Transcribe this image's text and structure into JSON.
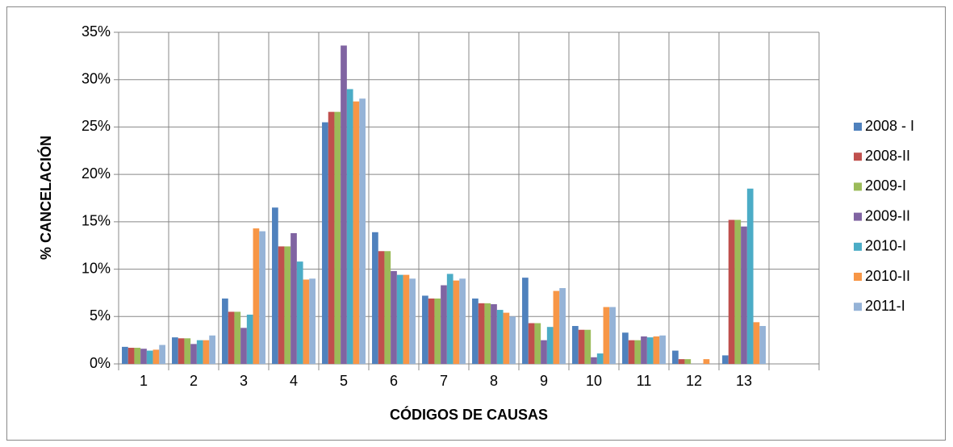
{
  "chart_data": {
    "type": "bar",
    "y_label": "% CANCELACIÓN",
    "x_label": "CÓDIGOS DE CAUSAS",
    "categories": [
      "1",
      "2",
      "3",
      "4",
      "5",
      "6",
      "7",
      "8",
      "9",
      "10",
      "11",
      "12",
      "13",
      null
    ],
    "series": [
      {
        "name": "2008 - I",
        "color": "#4f81bd",
        "values": [
          1.8,
          2.8,
          6.9,
          16.5,
          25.5,
          13.9,
          7.2,
          6.9,
          9.1,
          4.0,
          3.3,
          1.4,
          0.9,
          null
        ]
      },
      {
        "name": "2008-II",
        "color": "#c0504d",
        "values": [
          1.7,
          2.7,
          5.5,
          12.4,
          26.6,
          11.9,
          6.9,
          6.4,
          4.3,
          3.6,
          2.5,
          0.5,
          15.2,
          null
        ]
      },
      {
        "name": "2009-I",
        "color": "#9bbb59",
        "values": [
          1.7,
          2.7,
          5.5,
          12.4,
          26.6,
          11.9,
          6.9,
          6.4,
          4.3,
          3.6,
          2.5,
          0.5,
          15.2,
          null
        ]
      },
      {
        "name": "2009-II",
        "color": "#8064a2",
        "values": [
          1.6,
          2.1,
          3.8,
          13.8,
          33.6,
          9.8,
          8.3,
          6.3,
          2.5,
          0.7,
          2.9,
          0,
          14.5,
          null
        ]
      },
      {
        "name": "2010-I",
        "color": "#4bacc6",
        "values": [
          1.4,
          2.5,
          5.2,
          10.8,
          29.0,
          9.4,
          9.5,
          5.7,
          3.9,
          1.1,
          2.8,
          0,
          18.5,
          null
        ]
      },
      {
        "name": "2010-II",
        "color": "#f79646",
        "values": [
          1.5,
          2.5,
          14.3,
          8.9,
          27.7,
          9.4,
          8.8,
          5.4,
          7.7,
          6.0,
          2.9,
          0.5,
          4.4,
          null
        ]
      },
      {
        "name": "2011-I",
        "color": "#95b3d7",
        "values": [
          2.0,
          3.0,
          14.0,
          9.0,
          28.0,
          9.0,
          9.0,
          5.0,
          8.0,
          6.0,
          3.0,
          0,
          4.0,
          null
        ]
      }
    ],
    "ylim": [
      0,
      35
    ],
    "yticks": [
      {
        "value": 0,
        "label": "0%"
      },
      {
        "value": 5,
        "label": "5%"
      },
      {
        "value": 10,
        "label": "10%"
      },
      {
        "value": 15,
        "label": "15%"
      },
      {
        "value": 20,
        "label": "20%"
      },
      {
        "value": 25,
        "label": "25%"
      },
      {
        "value": 30,
        "label": "30%"
      },
      {
        "value": 35,
        "label": "35%"
      }
    ],
    "grid": true,
    "legend": "right"
  }
}
